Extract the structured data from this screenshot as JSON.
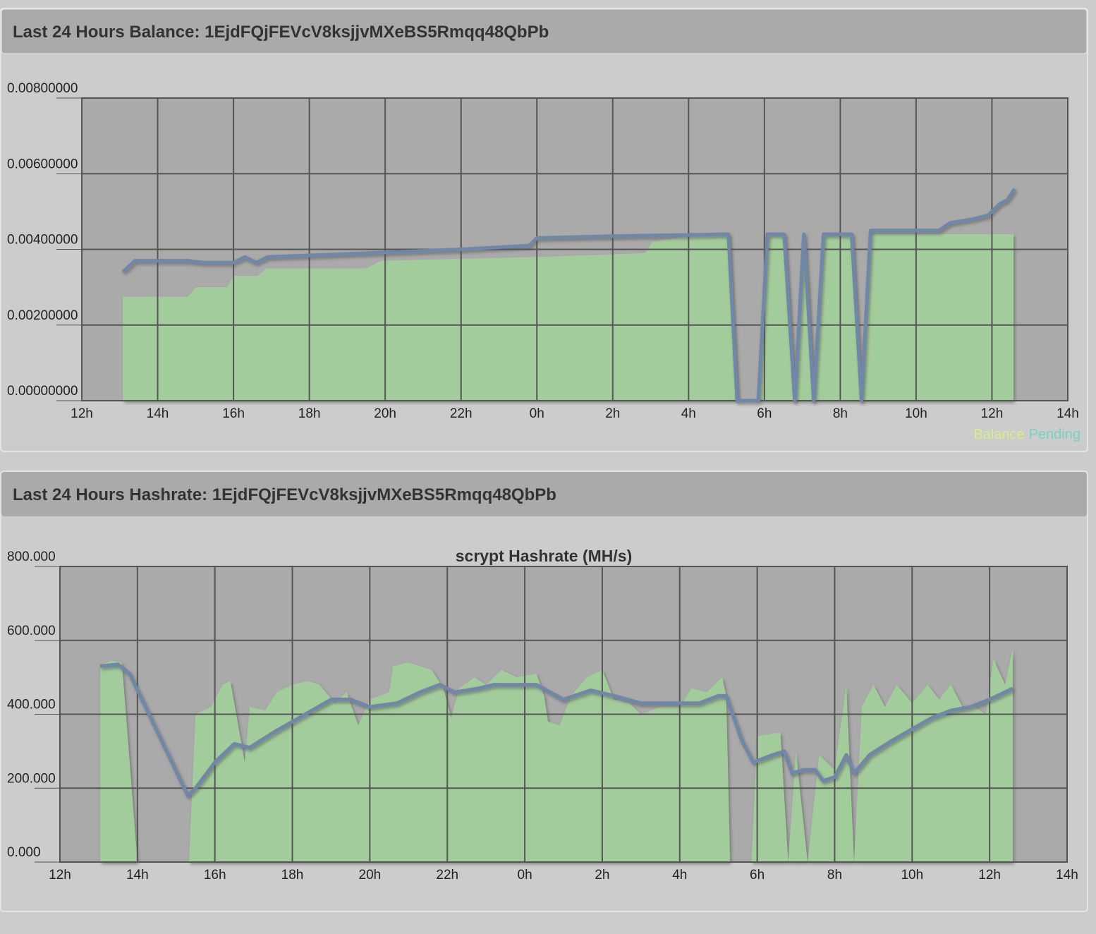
{
  "chart_data": [
    {
      "type": "area_line",
      "panel_title": "Last 24 Hours Balance: 1EjdFQjFEVcV8ksjjvMXeBS5Rmqq48QbPb",
      "xlim": [
        12,
        38
      ],
      "xticks": [
        {
          "value": 12,
          "label": "12h"
        },
        {
          "value": 14,
          "label": "14h"
        },
        {
          "value": 16,
          "label": "16h"
        },
        {
          "value": 18,
          "label": "18h"
        },
        {
          "value": 20,
          "label": "20h"
        },
        {
          "value": 22,
          "label": "22h"
        },
        {
          "value": 24,
          "label": "0h"
        },
        {
          "value": 26,
          "label": "2h"
        },
        {
          "value": 28,
          "label": "4h"
        },
        {
          "value": 30,
          "label": "6h"
        },
        {
          "value": 32,
          "label": "8h"
        },
        {
          "value": 34,
          "label": "10h"
        },
        {
          "value": 36,
          "label": "12h"
        },
        {
          "value": 38,
          "label": "14h"
        }
      ],
      "ylim": [
        0,
        0.008
      ],
      "yticks": [
        {
          "value": 0,
          "label": "0.00000000"
        },
        {
          "value": 0.002,
          "label": "0.00200000"
        },
        {
          "value": 0.004,
          "label": "0.00400000"
        },
        {
          "value": 0.006,
          "label": "0.00600000"
        },
        {
          "value": 0.008,
          "label": "0.00800000"
        }
      ],
      "grid": true,
      "legend": "bottom-right",
      "series": [
        {
          "name": "Balance",
          "kind": "area",
          "color": "#a3cc9c",
          "legend_color": "#d6ee8a",
          "x": [
            13.08,
            14.8,
            15.0,
            15.83,
            16.0,
            16.63,
            16.87,
            19.5,
            19.9,
            24.0,
            26.86,
            27.05,
            28.3,
            29.05,
            29.28,
            29.84,
            30.08,
            30.52,
            30.8,
            31.04,
            31.3,
            31.56,
            32.3,
            32.56,
            32.8,
            36.57
          ],
          "values": [
            0.00275,
            0.00275,
            0.003,
            0.003,
            0.0033,
            0.0033,
            0.0035,
            0.0035,
            0.0037,
            0.0038,
            0.0039,
            0.0042,
            0.0044,
            0.0044,
            0,
            0,
            0.0044,
            0.0044,
            0,
            0.0044,
            0,
            0.0044,
            0.0044,
            0,
            0.0044,
            0.0044
          ]
        },
        {
          "name": "Pending",
          "kind": "line",
          "color": "#6f87a8",
          "legend_color": "#7ad0c5",
          "x": [
            13.08,
            13.4,
            14.8,
            15.2,
            16.0,
            16.3,
            16.6,
            16.9,
            19.5,
            22.0,
            23.8,
            24.0,
            26.0,
            29.05,
            29.28,
            29.84,
            30.08,
            30.52,
            30.8,
            31.04,
            31.3,
            31.56,
            32.3,
            32.56,
            32.8,
            34.6,
            34.9,
            35.5,
            35.9,
            36.2,
            36.4,
            36.6
          ],
          "values": [
            0.0034,
            0.0037,
            0.0037,
            0.00365,
            0.00365,
            0.0038,
            0.00365,
            0.0038,
            0.0039,
            0.004,
            0.0041,
            0.0043,
            0.00435,
            0.0044,
            0,
            0,
            0.0044,
            0.0044,
            0,
            0.0044,
            0,
            0.0044,
            0.0044,
            0,
            0.0045,
            0.0045,
            0.0047,
            0.0048,
            0.0049,
            0.0052,
            0.0053,
            0.0056
          ]
        }
      ]
    },
    {
      "type": "area_line",
      "panel_title": "Last 24 Hours Hashrate: 1EjdFQjFEVcV8ksjjvMXeBS5Rmqq48QbPb",
      "title": "scrypt Hashrate (MH/s)",
      "xlim": [
        12,
        38
      ],
      "xticks": [
        {
          "value": 12,
          "label": "12h"
        },
        {
          "value": 14,
          "label": "14h"
        },
        {
          "value": 16,
          "label": "16h"
        },
        {
          "value": 18,
          "label": "18h"
        },
        {
          "value": 20,
          "label": "20h"
        },
        {
          "value": 22,
          "label": "22h"
        },
        {
          "value": 24,
          "label": "0h"
        },
        {
          "value": 26,
          "label": "2h"
        },
        {
          "value": 28,
          "label": "4h"
        },
        {
          "value": 30,
          "label": "6h"
        },
        {
          "value": 32,
          "label": "8h"
        },
        {
          "value": 34,
          "label": "10h"
        },
        {
          "value": 36,
          "label": "12h"
        },
        {
          "value": 38,
          "label": "14h"
        }
      ],
      "ylim": [
        0,
        800
      ],
      "yticks": [
        {
          "value": 0,
          "label": "0.000"
        },
        {
          "value": 200,
          "label": "200.000"
        },
        {
          "value": 400,
          "label": "400.000"
        },
        {
          "value": 600,
          "label": "600.000"
        },
        {
          "value": 800,
          "label": "800.000"
        }
      ],
      "grid": true,
      "series": [
        {
          "kind": "area",
          "color": "#a3cc9c",
          "x": [
            13.04,
            13.3,
            13.6,
            14.0,
            15.33,
            15.5,
            15.9,
            16.2,
            16.4,
            16.77,
            16.9,
            17.3,
            17.6,
            18.0,
            18.4,
            18.7,
            19.1,
            19.4,
            19.7,
            20.0,
            20.5,
            20.6,
            21.0,
            21.6,
            21.9,
            22.1,
            22.3,
            22.7,
            23.0,
            23.4,
            23.8,
            24.3,
            24.5,
            24.6,
            24.9,
            25.2,
            25.6,
            26.0,
            26.3,
            26.7,
            27.0,
            27.5,
            28.0,
            28.3,
            28.7,
            29.1,
            29.2,
            29.3,
            29.85,
            30.0,
            30.5,
            30.6,
            30.8,
            31.0,
            31.3,
            31.6,
            32.0,
            32.3,
            32.5,
            32.7,
            33.0,
            33.3,
            33.6,
            34.0,
            34.4,
            34.7,
            35.0,
            35.3,
            35.6,
            35.9,
            36.1,
            36.4,
            36.6
          ],
          "values": [
            530,
            545,
            540,
            0,
            0,
            400,
            420,
            480,
            490,
            270,
            420,
            410,
            460,
            480,
            490,
            480,
            430,
            460,
            370,
            440,
            460,
            530,
            540,
            520,
            470,
            390,
            470,
            500,
            480,
            520,
            500,
            510,
            450,
            380,
            370,
            450,
            500,
            520,
            440,
            430,
            400,
            420,
            420,
            470,
            460,
            500,
            450,
            0,
            0,
            340,
            350,
            350,
            0,
            300,
            0,
            290,
            250,
            480,
            0,
            420,
            480,
            420,
            480,
            430,
            480,
            440,
            480,
            420,
            420,
            400,
            550,
            480,
            580
          ]
        },
        {
          "kind": "line",
          "color": "#6f87a8",
          "x": [
            13.04,
            13.5,
            13.8,
            14.3,
            15.3,
            15.5,
            16.0,
            16.5,
            16.9,
            17.5,
            18.5,
            19.0,
            19.5,
            20.0,
            20.7,
            21.3,
            21.8,
            22.2,
            22.8,
            23.2,
            24.3,
            25.0,
            25.7,
            26.3,
            27.0,
            28.0,
            28.5,
            29.0,
            29.2,
            29.6,
            29.9,
            30.4,
            30.7,
            30.9,
            31.2,
            31.5,
            31.7,
            32.0,
            32.3,
            32.5,
            32.9,
            33.5,
            34.0,
            34.5,
            35.0,
            35.5,
            36.0,
            36.6
          ],
          "values": [
            530,
            535,
            510,
            400,
            180,
            200,
            270,
            320,
            310,
            350,
            410,
            440,
            440,
            420,
            430,
            460,
            480,
            460,
            470,
            480,
            480,
            440,
            465,
            450,
            430,
            430,
            430,
            450,
            450,
            330,
            270,
            290,
            300,
            240,
            250,
            250,
            220,
            230,
            290,
            240,
            290,
            330,
            360,
            390,
            410,
            420,
            440,
            470
          ]
        }
      ]
    }
  ]
}
